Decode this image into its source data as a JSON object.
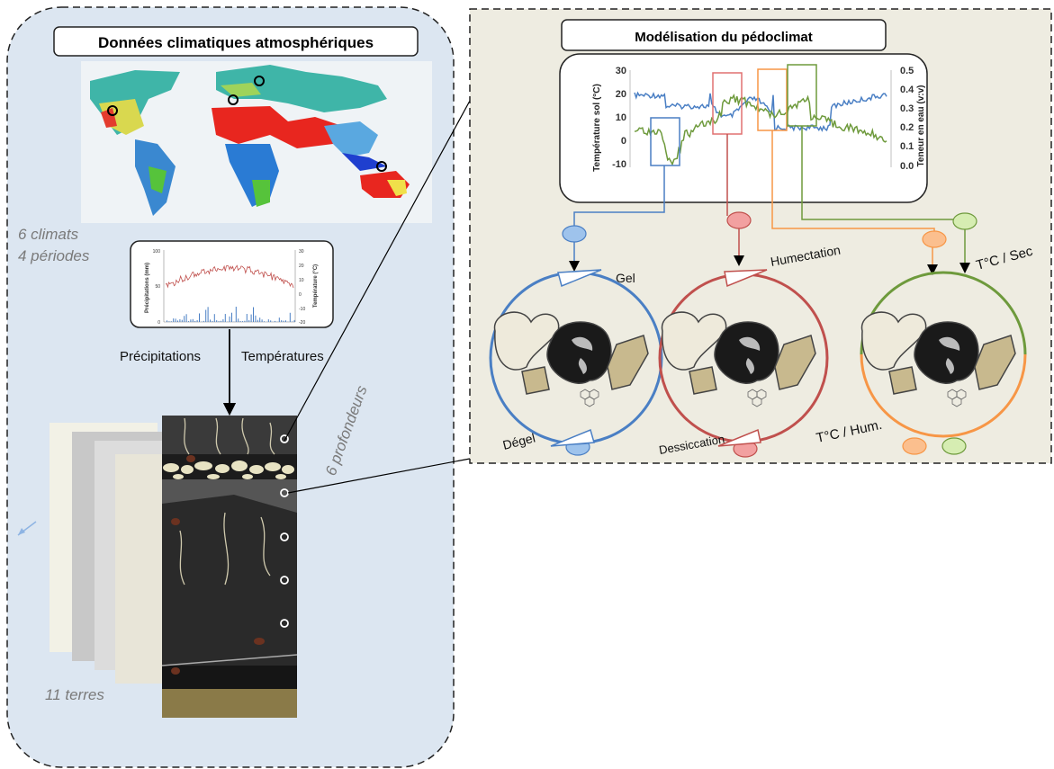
{
  "left_panel": {
    "title": "Données climatiques atmosphériques",
    "climates": "6 climats",
    "periods": "4 périodes",
    "precip_label": "Précipitations",
    "temp_label": "Températures",
    "depths": "6 profondeurs",
    "soils": "11 terres",
    "mini_chart": {
      "ylabel_left": "Précipitations (mm)",
      "ylabel_right": "Température (°C)",
      "left_ticks": [
        "0",
        "50",
        "100"
      ],
      "right_ticks": [
        "-20",
        "-10",
        "0",
        "10",
        "20",
        "30"
      ]
    }
  },
  "right_panel": {
    "title": "Modélisation du pédoclimat",
    "chart": {
      "ylabel_left": "Température sol (°C)",
      "ylabel_right": "Teneur en eau (v:v)",
      "left_ticks": [
        "30",
        "20",
        "10",
        "0",
        "-10"
      ],
      "right_ticks": [
        "0.5",
        "0.4",
        "0.3",
        "0.2",
        "0.1",
        "0.0"
      ]
    },
    "cycle_labels": {
      "gel": "Gel",
      "degel": "Dégel",
      "humectation": "Humectation",
      "dessiccation": "Dessiccation",
      "tc_sec": "T°C / Sec",
      "tc_hum": "T°C / Hum."
    }
  },
  "colors": {
    "blue": "#4a7fc4",
    "red": "#c0504d",
    "orange": "#f79646",
    "green": "#6e9a3c",
    "panel_bg": "#dce6f1",
    "right_bg": "#eeece1"
  }
}
